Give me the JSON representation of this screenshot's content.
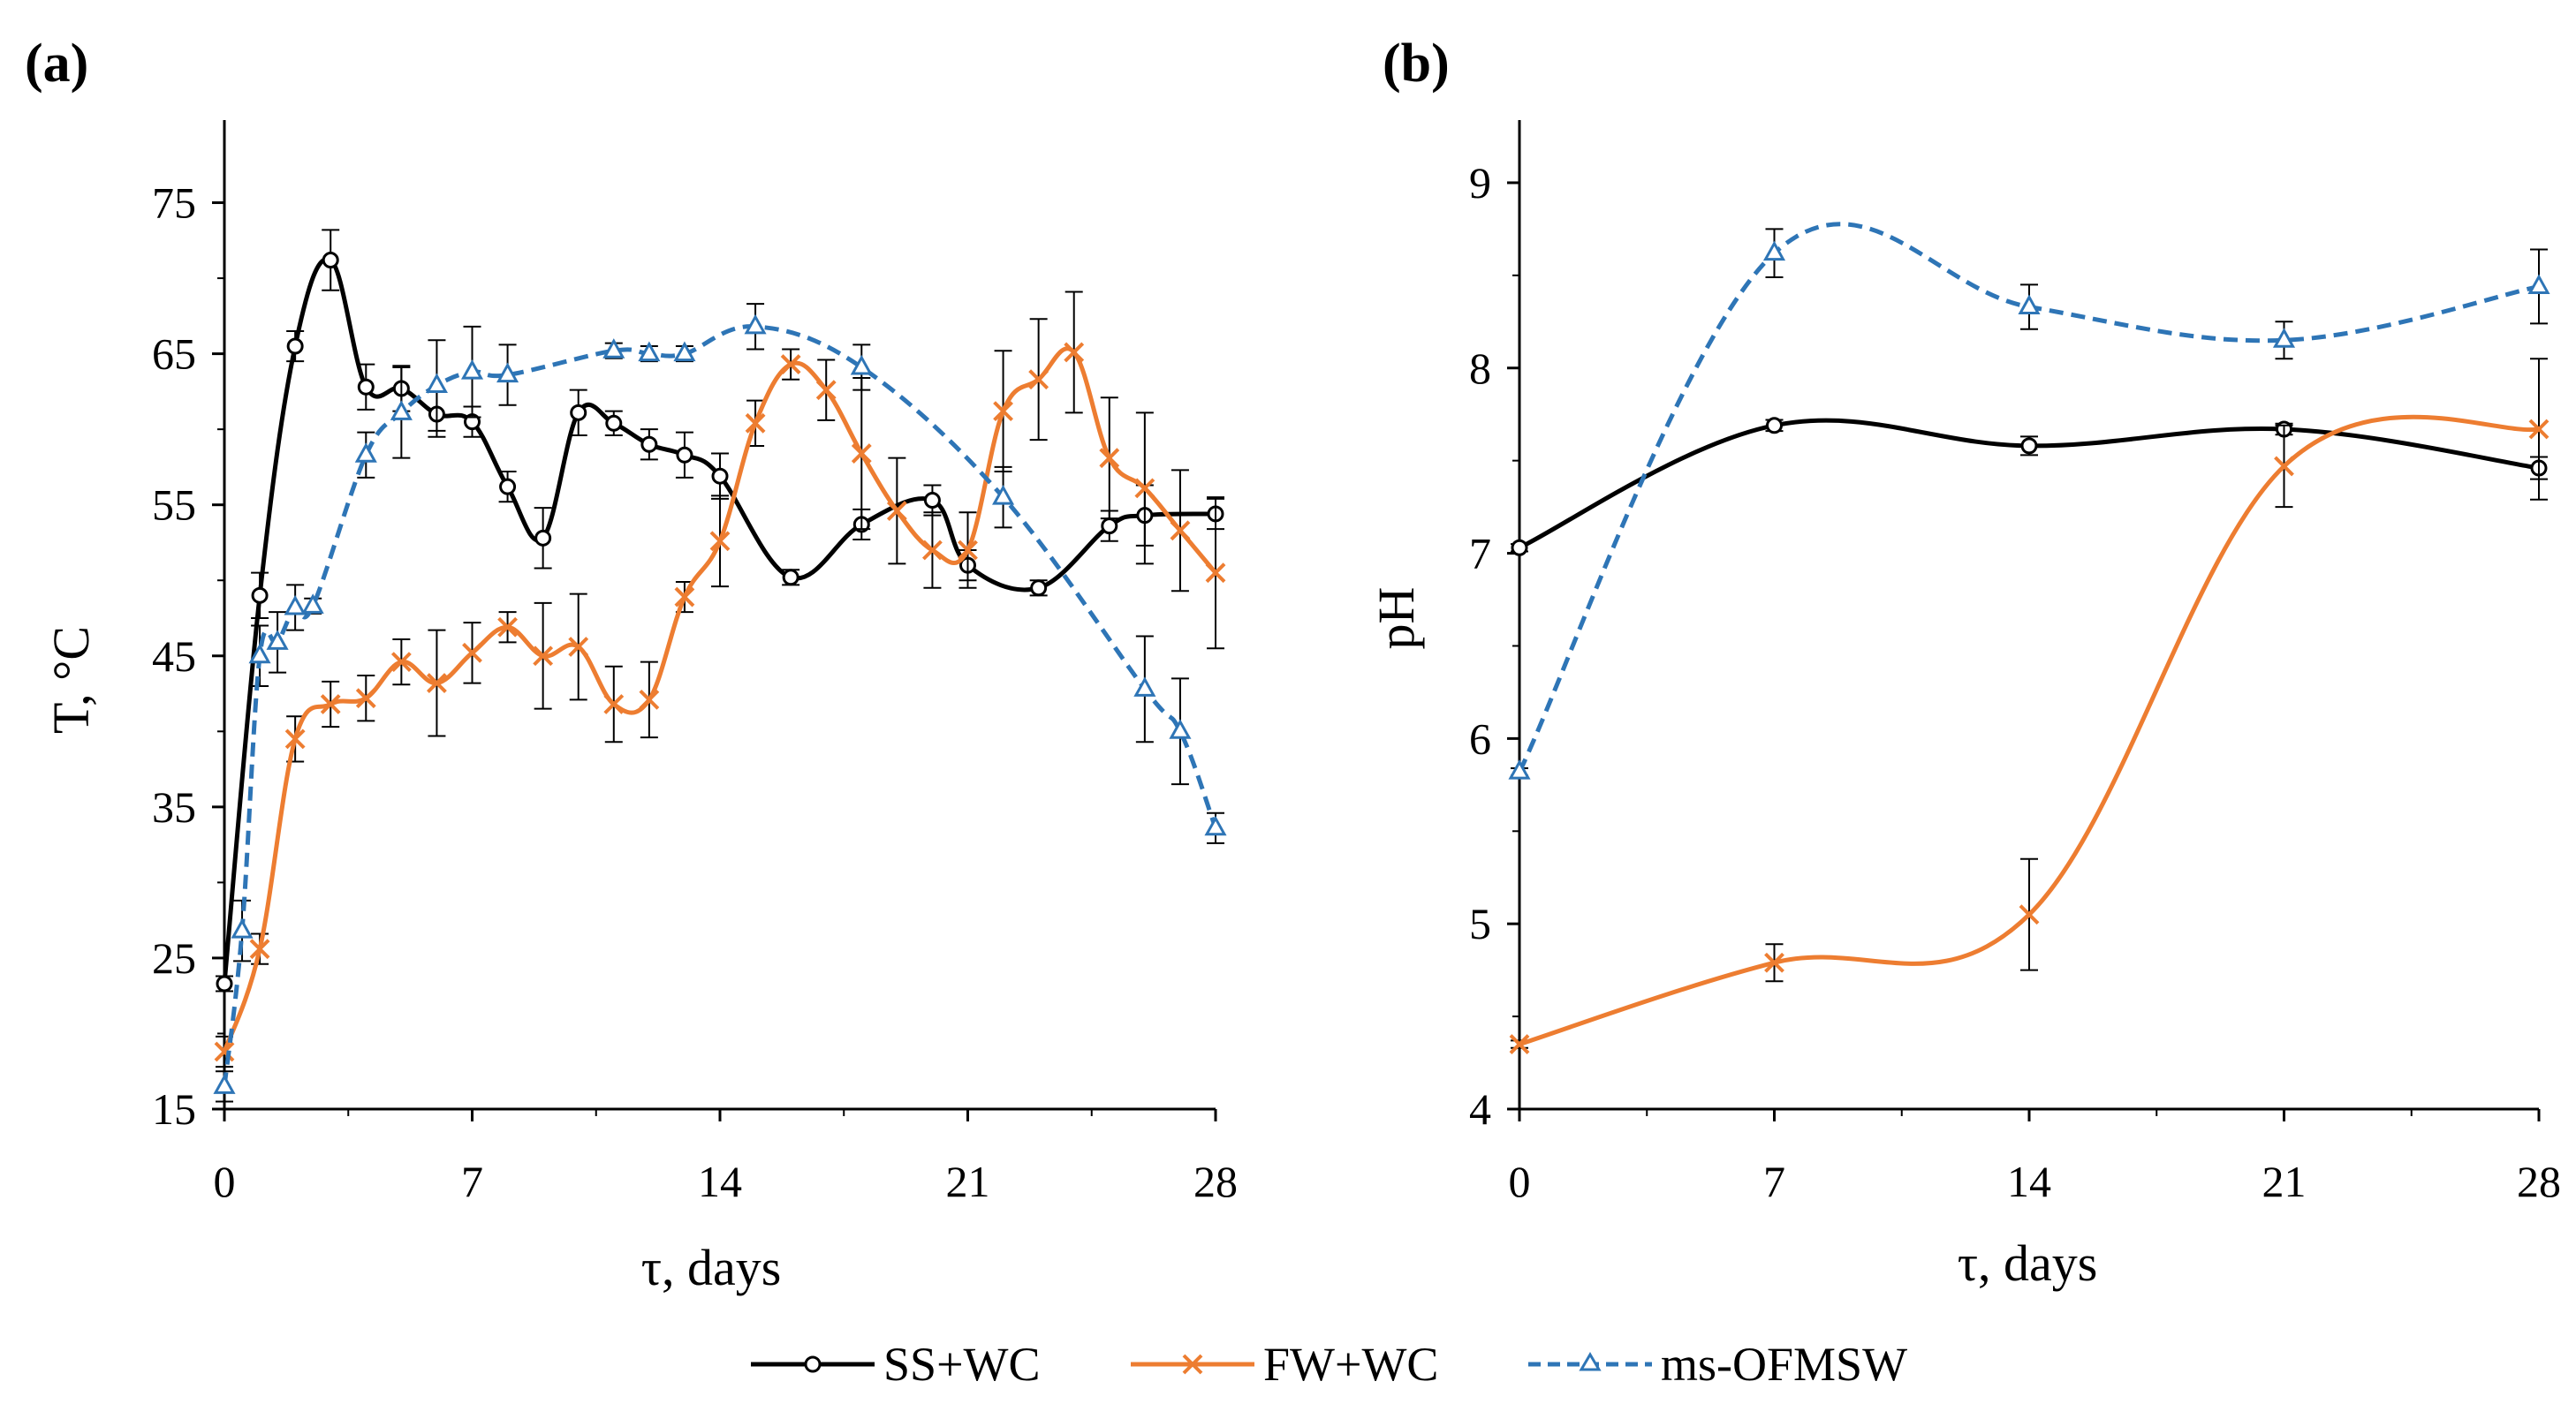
{
  "chart_data": [
    {
      "type": "line",
      "panel_label": "(a)",
      "xlabel": "τ, days",
      "ylabel": "T, °C",
      "xlim": [
        0,
        28
      ],
      "ylim": [
        15,
        80
      ],
      "x_ticks": [
        0,
        7,
        14,
        21,
        28
      ],
      "y_ticks": [
        15,
        25,
        35,
        45,
        55,
        65,
        75
      ],
      "series": [
        {
          "name": "SS+WC",
          "marker": "circle",
          "x": [
            0,
            1,
            2,
            3,
            4,
            5,
            6,
            7,
            8,
            9,
            10,
            11,
            12,
            13,
            14,
            16,
            18,
            20,
            21,
            23,
            25,
            26,
            28
          ],
          "y": [
            23.3,
            49,
            65.5,
            71.2,
            62.8,
            62.7,
            61.0,
            60.5,
            56.2,
            52.8,
            61.1,
            60.4,
            59.0,
            58.3,
            56.9,
            50.2,
            53.7,
            55.3,
            51.0,
            49.5,
            53.6,
            54.3,
            54.4
          ],
          "err": [
            0.5,
            1.5,
            1.0,
            2.0,
            1.5,
            1.5,
            1.5,
            1.0,
            1.0,
            2.0,
            1.5,
            0.8,
            1.0,
            1.5,
            1.5,
            0.5,
            1.0,
            1.0,
            1.0,
            0.5,
            1.0,
            2.0,
            1.0
          ]
        },
        {
          "name": "FW+WC",
          "marker": "x",
          "x": [
            0,
            1,
            2,
            3,
            4,
            5,
            6,
            7,
            8,
            9,
            10,
            11,
            12,
            13,
            14,
            15,
            16,
            17,
            18,
            19,
            20,
            21,
            22,
            23,
            24,
            25,
            26,
            27,
            28
          ],
          "y": [
            18.8,
            25.6,
            39.5,
            41.8,
            42.2,
            44.6,
            43.2,
            45.2,
            46.9,
            45.0,
            45.6,
            41.8,
            42.1,
            48.9,
            52.6,
            60.4,
            64.3,
            62.6,
            58.4,
            54.6,
            52.0,
            52.0,
            61.2,
            63.3,
            65.1,
            58.1,
            56.1,
            53.3,
            50.5
          ],
          "err": [
            1.0,
            1.0,
            1.5,
            1.5,
            1.5,
            1.5,
            3.5,
            2.0,
            1.0,
            3.5,
            3.5,
            2.5,
            2.5,
            1.0,
            3.0,
            1.5,
            1.0,
            2.0,
            5.0,
            3.5,
            2.5,
            2.5,
            4.0,
            4.0,
            4.0,
            4.0,
            5.0,
            4.0,
            5.0
          ]
        },
        {
          "name": "ms-OFMSW",
          "marker": "triangle",
          "x": [
            0,
            0.5,
            1,
            1.5,
            2,
            2.5,
            4,
            5,
            6,
            7,
            8,
            11,
            12,
            13,
            15,
            18,
            22,
            26,
            27,
            28
          ],
          "y": [
            16.5,
            26.8,
            45.0,
            45.9,
            48.2,
            48.3,
            58.3,
            61.1,
            62.9,
            63.8,
            63.6,
            65.2,
            65.0,
            65.0,
            66.8,
            64.1,
            55.5,
            42.8,
            40.0,
            33.6
          ],
          "err": [
            1.0,
            2.0,
            2.0,
            2.0,
            1.5,
            0.5,
            1.5,
            3.0,
            3.0,
            3.0,
            2.0,
            0.5,
            0.5,
            0.5,
            1.5,
            1.5,
            2.0,
            3.5,
            3.5,
            1.0
          ]
        }
      ]
    },
    {
      "type": "line",
      "panel_label": "(b)",
      "xlabel": "τ, days",
      "ylabel": "pH",
      "xlim": [
        0,
        28
      ],
      "ylim": [
        4,
        9.3
      ],
      "x_ticks": [
        0,
        7,
        14,
        21,
        28
      ],
      "y_ticks": [
        4,
        5,
        6,
        7,
        8,
        9
      ],
      "series": [
        {
          "name": "SS+WC",
          "marker": "circle",
          "x": [
            0,
            7,
            14,
            21,
            28
          ],
          "y": [
            7.03,
            7.69,
            7.58,
            7.67,
            7.46
          ],
          "err": [
            0.02,
            0.03,
            0.05,
            0.03,
            0.06
          ]
        },
        {
          "name": "FW+WC",
          "marker": "x",
          "x": [
            0,
            7,
            14,
            21,
            28
          ],
          "y": [
            4.35,
            4.79,
            5.05,
            7.47,
            7.67
          ],
          "err": [
            0.02,
            0.1,
            0.3,
            0.22,
            0.38
          ]
        },
        {
          "name": "ms-OFMSW",
          "marker": "triangle",
          "x": [
            0,
            7,
            14,
            21,
            28
          ],
          "y": [
            5.82,
            8.62,
            8.33,
            8.15,
            8.44
          ],
          "err": [
            0.02,
            0.13,
            0.12,
            0.1,
            0.2
          ]
        }
      ]
    }
  ],
  "legend": {
    "items": [
      {
        "name": "SS+WC",
        "color": "#000000",
        "marker": "circle",
        "dash": "solid"
      },
      {
        "name": "FW+WC",
        "color": "#ED7D31",
        "marker": "x",
        "dash": "solid"
      },
      {
        "name": "ms-OFMSW",
        "color": "#2E75B6",
        "marker": "triangle",
        "dash": "dashed"
      }
    ]
  },
  "colors": {
    "SS+WC": "#000000",
    "FW+WC": "#ED7D31",
    "ms-OFMSW": "#2E75B6",
    "axis": "#000000",
    "error_bar": "#000000"
  }
}
